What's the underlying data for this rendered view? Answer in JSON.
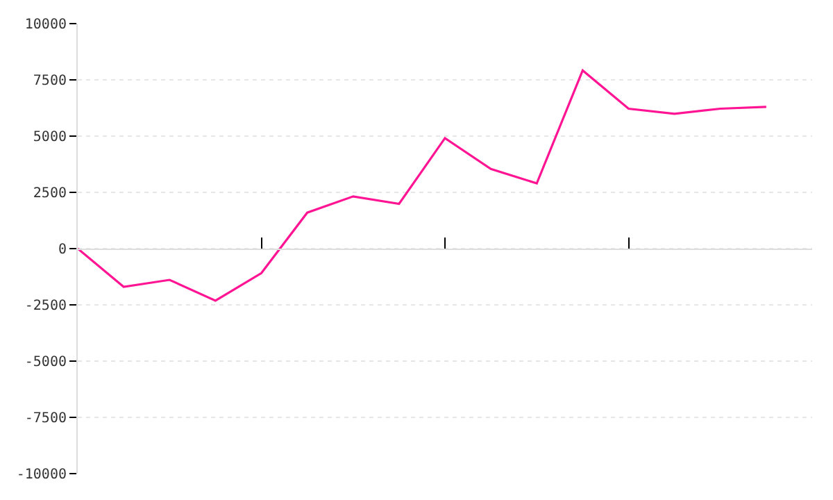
{
  "chart_data": {
    "type": "line",
    "categories": [
      null,
      null,
      null,
      null,
      null,
      null,
      null,
      null,
      null,
      null,
      null,
      null,
      null,
      null,
      null,
      null
    ],
    "series": [
      {
        "color": "#ff1493",
        "values": [
          0,
          -1700,
          -1390,
          -2310,
          -1090,
          1600,
          2320,
          1990,
          4910,
          3540,
          2900,
          7920,
          6220,
          5990,
          6220,
          6300
        ]
      }
    ],
    "ylim": [
      -10000,
      10000
    ],
    "yticks": [
      -10000,
      -7500,
      -5000,
      -2500,
      0,
      2500,
      5000,
      7500,
      10000
    ],
    "grid": "y",
    "marker": "none",
    "line_style": "solid",
    "tick_labels": "y"
  }
}
